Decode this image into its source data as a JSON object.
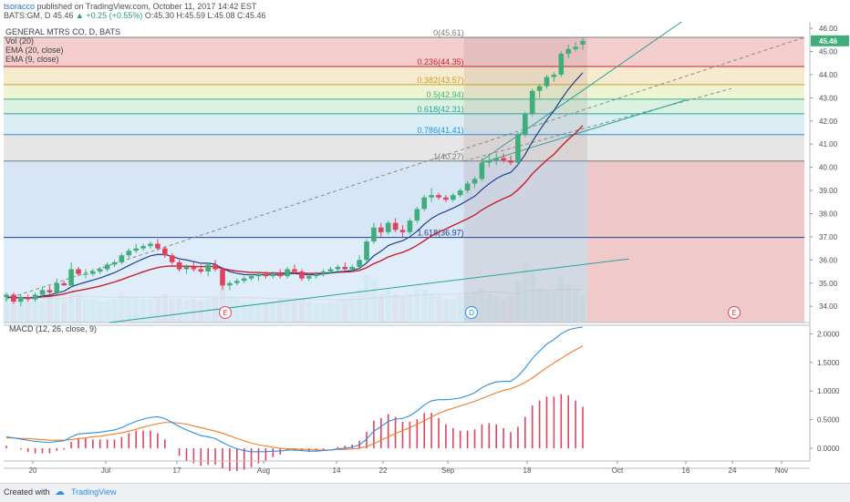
{
  "header": {
    "author": "tsoracco",
    "published": "published on TradingView.com, October 11, 2017 14:42 EST",
    "symbol_line": "BATS:GM, D",
    "last": "45.46",
    "change": "+0.25 (+0.55%)",
    "ohlc": "O:45.30 H:45.59 L:45.08 C:45.46"
  },
  "legend": {
    "title": "GENERAL MTRS CO, D, BATS",
    "vol": "Vol (20)",
    "ema20": "EMA (20, close)",
    "ema9": "EMA (9, close)"
  },
  "macd_label": "MACD (12, 26, close, 9)",
  "footer": {
    "created_with": "Created with",
    "brand": "TradingView"
  },
  "colors": {
    "up": "#3fae7a",
    "down": "#e0425b",
    "ema20": "#c9202a",
    "ema9": "#1f3f8f",
    "macd": "#2c8fe0",
    "signal": "#f07d28",
    "hist": "#e0425b",
    "price_tag": "#3fae7a"
  },
  "chart_data": [
    {
      "type": "candlestick",
      "title": "GENERAL MTRS CO, D, BATS",
      "y_ticks": [
        34.0,
        35.0,
        36.0,
        37.0,
        38.0,
        39.0,
        40.0,
        41.0,
        42.0,
        43.0,
        44.0,
        45.0,
        46.0
      ],
      "ylim": [
        33.3,
        46.2
      ],
      "x_tick_labels": [
        "20",
        "Jul",
        "17",
        "Aug",
        "14",
        "22",
        "Sep",
        "18",
        "Oct",
        "16",
        "24",
        "Nov"
      ],
      "last_price": "45.46",
      "candles": [
        [
          34.4,
          34.6,
          34.2,
          34.5
        ],
        [
          34.5,
          34.6,
          34.1,
          34.2
        ],
        [
          34.2,
          34.5,
          34.0,
          34.4
        ],
        [
          34.4,
          34.5,
          34.2,
          34.3
        ],
        [
          34.3,
          34.6,
          34.2,
          34.5
        ],
        [
          34.5,
          34.8,
          34.4,
          34.7
        ],
        [
          34.7,
          34.9,
          34.5,
          34.6
        ],
        [
          34.6,
          35.2,
          34.5,
          35.0
        ],
        [
          35.0,
          35.1,
          34.9,
          34.9
        ],
        [
          34.9,
          35.9,
          34.8,
          35.6
        ],
        [
          35.6,
          35.7,
          35.3,
          35.4
        ],
        [
          35.4,
          35.6,
          35.2,
          35.4
        ],
        [
          35.4,
          35.6,
          35.3,
          35.5
        ],
        [
          35.5,
          35.7,
          35.4,
          35.6
        ],
        [
          35.6,
          35.9,
          35.5,
          35.8
        ],
        [
          35.8,
          36.0,
          35.7,
          35.9
        ],
        [
          35.9,
          36.3,
          35.8,
          36.2
        ],
        [
          36.2,
          36.5,
          36.1,
          36.4
        ],
        [
          36.4,
          36.7,
          36.3,
          36.5
        ],
        [
          36.5,
          36.7,
          36.4,
          36.6
        ],
        [
          36.6,
          36.8,
          36.5,
          36.7
        ],
        [
          36.7,
          36.9,
          36.4,
          36.5
        ],
        [
          36.5,
          36.6,
          36.1,
          36.2
        ],
        [
          36.2,
          36.3,
          35.8,
          35.9
        ],
        [
          35.9,
          36.0,
          35.5,
          35.6
        ],
        [
          35.6,
          35.8,
          35.4,
          35.7
        ],
        [
          35.7,
          35.9,
          35.5,
          35.6
        ],
        [
          35.6,
          35.8,
          35.4,
          35.5
        ],
        [
          35.5,
          35.9,
          35.3,
          35.8
        ],
        [
          35.8,
          36.0,
          35.5,
          35.6
        ],
        [
          35.6,
          35.7,
          34.7,
          34.9
        ],
        [
          34.9,
          35.1,
          34.7,
          35.0
        ],
        [
          35.0,
          35.2,
          34.9,
          35.1
        ],
        [
          35.1,
          35.3,
          35.0,
          35.2
        ],
        [
          35.2,
          35.4,
          35.1,
          35.3
        ],
        [
          35.3,
          35.5,
          35.1,
          35.4
        ],
        [
          35.4,
          35.5,
          35.2,
          35.3
        ],
        [
          35.3,
          35.5,
          35.2,
          35.4
        ],
        [
          35.4,
          35.6,
          35.2,
          35.3
        ],
        [
          35.3,
          35.7,
          35.2,
          35.6
        ],
        [
          35.6,
          35.8,
          35.4,
          35.5
        ],
        [
          35.5,
          35.6,
          35.1,
          35.2
        ],
        [
          35.2,
          35.4,
          35.1,
          35.3
        ],
        [
          35.3,
          35.5,
          35.2,
          35.4
        ],
        [
          35.4,
          35.6,
          35.3,
          35.5
        ],
        [
          35.5,
          35.7,
          35.4,
          35.6
        ],
        [
          35.6,
          35.8,
          35.5,
          35.7
        ],
        [
          35.7,
          35.9,
          35.5,
          35.6
        ],
        [
          35.6,
          35.8,
          35.5,
          35.7
        ],
        [
          35.7,
          36.2,
          35.6,
          36.0
        ],
        [
          36.0,
          36.9,
          35.9,
          36.8
        ],
        [
          36.8,
          37.6,
          36.7,
          37.4
        ],
        [
          37.4,
          37.6,
          37.0,
          37.2
        ],
        [
          37.2,
          37.7,
          37.1,
          37.6
        ],
        [
          37.6,
          37.8,
          37.2,
          37.3
        ],
        [
          37.3,
          37.5,
          37.0,
          37.2
        ],
        [
          37.2,
          37.8,
          37.1,
          37.7
        ],
        [
          37.7,
          38.3,
          37.6,
          38.2
        ],
        [
          38.2,
          38.8,
          38.1,
          38.7
        ],
        [
          38.7,
          39.1,
          38.5,
          38.8
        ],
        [
          38.8,
          38.9,
          38.6,
          38.7
        ],
        [
          38.7,
          38.8,
          38.5,
          38.6
        ],
        [
          38.6,
          38.9,
          38.5,
          38.8
        ],
        [
          38.8,
          39.1,
          38.7,
          39.0
        ],
        [
          39.0,
          39.4,
          38.9,
          39.3
        ],
        [
          39.3,
          39.6,
          39.1,
          39.5
        ],
        [
          39.5,
          40.4,
          39.4,
          40.2
        ],
        [
          40.2,
          40.5,
          40.0,
          40.3
        ],
        [
          40.3,
          40.6,
          40.1,
          40.4
        ],
        [
          40.4,
          40.6,
          40.2,
          40.3
        ],
        [
          40.3,
          40.5,
          40.1,
          40.2
        ],
        [
          40.2,
          41.5,
          40.1,
          41.4
        ],
        [
          41.4,
          42.4,
          41.3,
          42.3
        ],
        [
          42.3,
          43.4,
          42.2,
          43.3
        ],
        [
          43.3,
          43.6,
          43.0,
          43.5
        ],
        [
          43.5,
          44.0,
          43.4,
          43.9
        ],
        [
          43.9,
          44.1,
          43.7,
          44.0
        ],
        [
          44.0,
          45.0,
          43.9,
          44.9
        ],
        [
          44.9,
          45.3,
          44.7,
          45.1
        ],
        [
          45.1,
          45.4,
          45.0,
          45.2
        ],
        [
          45.3,
          45.59,
          45.08,
          45.46
        ]
      ],
      "volume_rel": [
        0.55,
        0.6,
        0.5,
        0.45,
        0.5,
        0.45,
        0.55,
        0.5,
        0.45,
        0.95,
        0.6,
        0.5,
        0.5,
        0.45,
        0.45,
        0.5,
        0.6,
        0.55,
        0.55,
        0.5,
        0.5,
        0.55,
        0.6,
        0.5,
        0.5,
        0.45,
        0.5,
        0.45,
        0.5,
        0.55,
        0.8,
        0.55,
        0.5,
        0.45,
        0.45,
        0.4,
        0.4,
        0.45,
        0.5,
        0.5,
        0.45,
        0.5,
        0.45,
        0.4,
        0.4,
        0.45,
        0.45,
        0.5,
        0.55,
        0.7,
        1.0,
        0.9,
        0.6,
        0.7,
        0.6,
        0.55,
        0.6,
        0.7,
        0.7,
        0.6,
        0.55,
        0.5,
        0.5,
        0.55,
        0.6,
        0.65,
        0.75,
        0.6,
        0.55,
        0.5,
        0.55,
        0.9,
        1.25,
        1.1,
        0.75,
        0.7,
        0.65,
        0.95,
        0.8,
        0.7,
        0.55
      ],
      "ema20": [
        34.4,
        34.38,
        34.38,
        34.37,
        34.38,
        34.41,
        34.43,
        34.48,
        34.53,
        34.62,
        34.68,
        34.74,
        34.8,
        34.87,
        34.96,
        35.05,
        35.15,
        35.27,
        35.38,
        35.49,
        35.59,
        35.67,
        35.72,
        35.74,
        35.73,
        35.73,
        35.72,
        35.71,
        35.72,
        35.71,
        35.63,
        35.57,
        35.52,
        35.49,
        35.46,
        35.46,
        35.44,
        35.44,
        35.43,
        35.45,
        35.45,
        35.43,
        35.42,
        35.42,
        35.43,
        35.44,
        35.47,
        35.48,
        35.5,
        35.55,
        35.67,
        35.84,
        35.97,
        36.13,
        36.24,
        36.33,
        36.46,
        36.63,
        36.83,
        37.04,
        37.2,
        37.34,
        37.49,
        37.63,
        37.78,
        37.94,
        38.16,
        38.34,
        38.5,
        38.65,
        38.78,
        39.03,
        39.34,
        39.72,
        40.02,
        40.31,
        40.56,
        40.9,
        41.21,
        41.48,
        41.8
      ],
      "ema9": [
        34.4,
        34.36,
        34.37,
        34.35,
        34.38,
        34.45,
        34.48,
        34.58,
        34.65,
        34.84,
        34.95,
        35.04,
        35.13,
        35.22,
        35.34,
        35.45,
        35.6,
        35.76,
        35.91,
        36.05,
        36.18,
        36.24,
        36.23,
        36.16,
        36.05,
        36.0,
        35.93,
        35.86,
        35.86,
        35.82,
        35.63,
        35.5,
        35.42,
        35.37,
        35.36,
        35.37,
        35.36,
        35.37,
        35.36,
        35.41,
        35.42,
        35.38,
        35.36,
        35.37,
        35.4,
        35.44,
        35.49,
        35.51,
        35.55,
        35.64,
        35.87,
        36.18,
        36.38,
        36.62,
        36.74,
        36.83,
        37.0,
        37.24,
        37.54,
        37.79,
        37.97,
        38.1,
        38.24,
        38.39,
        38.57,
        38.75,
        39.04,
        39.29,
        39.51,
        39.67,
        39.78,
        40.11,
        40.55,
        41.11,
        41.59,
        42.05,
        42.44,
        42.93,
        43.37,
        43.74,
        44.08
      ],
      "fibonacci": {
        "levels": [
          {
            "label": "0(45.61)",
            "ratio": 0,
            "price": 45.61,
            "color": "#7d7d7d",
            "band": "#f2c4c4"
          },
          {
            "label": "0.236(44.35)",
            "ratio": 0.236,
            "price": 44.35,
            "color": "#c9202a",
            "band": "#f6e7c7"
          },
          {
            "label": "0.382(43.57)",
            "ratio": 0.382,
            "price": 43.57,
            "color": "#c9a227",
            "band": "#e9f2cc"
          },
          {
            "label": "0.5(42.94)",
            "ratio": 0.5,
            "price": 42.94,
            "color": "#3fae7a",
            "band": "#d5f0de"
          },
          {
            "label": "0.618(42.31)",
            "ratio": 0.618,
            "price": 42.31,
            "color": "#2aa39a",
            "band": "#d3ebf1"
          },
          {
            "label": "0.786(41.41)",
            "ratio": 0.786,
            "price": 41.41,
            "color": "#2c8fe0",
            "band": "#e2e2e2"
          },
          {
            "label": "1(40.27)",
            "ratio": 1,
            "price": 40.27,
            "color": "#7d7d7d",
            "band": "#d6d6f2"
          },
          {
            "label": "1.618(36.97)",
            "ratio": 1.618,
            "price": 36.97,
            "color": "#1f3f8f",
            "band": null
          }
        ]
      },
      "earnings_markers": [
        "E",
        "D",
        "E"
      ]
    },
    {
      "type": "line",
      "title": "MACD (12, 26, close, 9)",
      "y_ticks": [
        0.0,
        0.5,
        1.0,
        1.5,
        2.0
      ],
      "y_tick_labels": [
        "0.0000",
        "0.5000",
        "1.0000",
        "1.5000",
        "2.0000"
      ],
      "ylim": [
        -0.35,
        2.15
      ],
      "series": [
        {
          "values": [
            0.2,
            0.18,
            0.16,
            0.14,
            0.12,
            0.11,
            0.1,
            0.12,
            0.13,
            0.2,
            0.25,
            0.26,
            0.27,
            0.28,
            0.3,
            0.32,
            0.36,
            0.42,
            0.47,
            0.51,
            0.54,
            0.55,
            0.52,
            0.45,
            0.38,
            0.32,
            0.27,
            0.22,
            0.2,
            0.17,
            0.1,
            0.04,
            -0.01,
            -0.04,
            -0.06,
            -0.06,
            -0.06,
            -0.05,
            -0.05,
            -0.03,
            -0.03,
            -0.04,
            -0.05,
            -0.05,
            -0.04,
            -0.03,
            -0.01,
            0.0,
            0.02,
            0.06,
            0.16,
            0.3,
            0.38,
            0.47,
            0.51,
            0.52,
            0.57,
            0.65,
            0.76,
            0.83,
            0.85,
            0.85,
            0.86,
            0.88,
            0.92,
            0.97,
            1.06,
            1.12,
            1.16,
            1.17,
            1.17,
            1.26,
            1.4,
            1.57,
            1.7,
            1.82,
            1.9,
            2.0,
            2.07,
            2.1,
            2.12
          ]
        },
        {
          "values": [
            0.18,
            0.18,
            0.17,
            0.17,
            0.16,
            0.15,
            0.14,
            0.14,
            0.14,
            0.15,
            0.17,
            0.18,
            0.2,
            0.21,
            0.23,
            0.25,
            0.27,
            0.3,
            0.33,
            0.37,
            0.4,
            0.43,
            0.45,
            0.45,
            0.44,
            0.42,
            0.39,
            0.36,
            0.33,
            0.3,
            0.26,
            0.22,
            0.17,
            0.13,
            0.09,
            0.06,
            0.04,
            0.02,
            0.0,
            -0.01,
            -0.01,
            -0.02,
            -0.02,
            -0.03,
            -0.03,
            -0.03,
            -0.02,
            -0.02,
            -0.01,
            0.0,
            0.03,
            0.08,
            0.14,
            0.2,
            0.26,
            0.31,
            0.36,
            0.42,
            0.48,
            0.55,
            0.61,
            0.66,
            0.7,
            0.74,
            0.78,
            0.82,
            0.87,
            0.92,
            0.97,
            1.01,
            1.04,
            1.09,
            1.15,
            1.23,
            1.32,
            1.41,
            1.49,
            1.57,
            1.65,
            1.72,
            1.79
          ]
        }
      ],
      "histogram_scale": 1.0
    }
  ]
}
